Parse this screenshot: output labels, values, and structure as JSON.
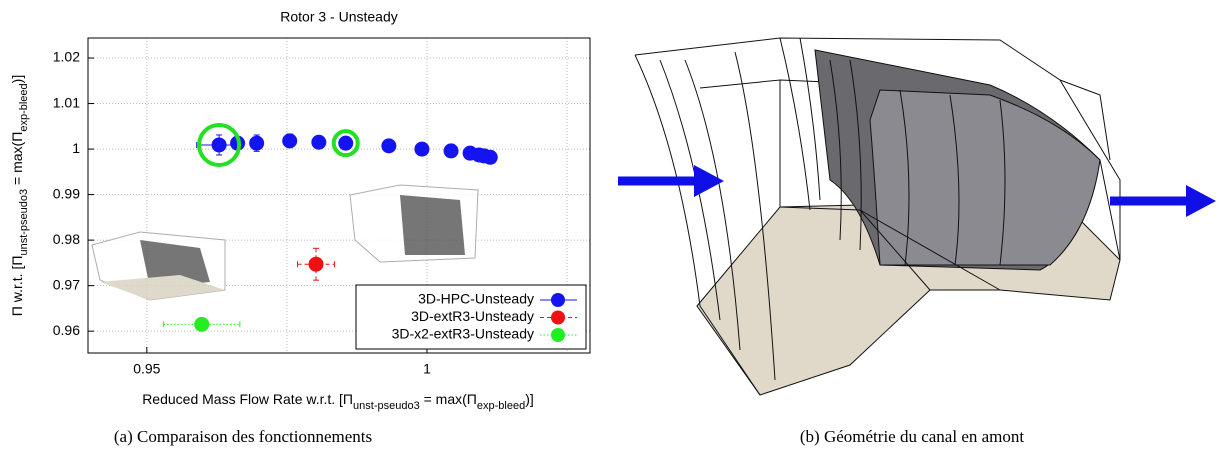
{
  "chart_data": {
    "type": "scatter",
    "title": "Rotor 3 - Unsteady",
    "x_label_parts": [
      "Reduced Mass Flow Rate  w.r.t.  [Π",
      "unst-pseudo3",
      " = max(Π",
      "exp-bleed",
      ")]"
    ],
    "y_label_parts": [
      "Π  w.r.t.  [Π",
      "unst-pseudo3",
      " = max(Π",
      "exp-bleed",
      ")]"
    ],
    "xlim": [
      0.9395,
      1.0291
    ],
    "ylim": [
      0.9552,
      1.0244
    ],
    "xticks": [
      0.95,
      1
    ],
    "xgrid": [
      0.95,
      0.975,
      1,
      1.025
    ],
    "yticks": [
      0.96,
      0.97,
      0.98,
      0.99,
      1,
      1.01,
      1.02
    ],
    "grid": true,
    "legend": "lower right",
    "highlighted_points": [
      0,
      5
    ],
    "highlight_color": "#22e022",
    "series": [
      {
        "name": "3D-HPC-Unsteady",
        "color": "#1414f0",
        "line": "solid",
        "x": [
          0.9629,
          0.9662,
          0.9696,
          0.9755,
          0.9807,
          0.9855,
          0.9932,
          0.9991,
          1.0043,
          1.0077,
          1.0093,
          1.0102,
          1.0113
        ],
        "y": [
          1.0009,
          1.0013,
          1.0013,
          1.0018,
          1.0015,
          1.0013,
          1.0007,
          1.0,
          0.9996,
          0.9991,
          0.9987,
          0.9985,
          0.9982
        ],
        "xerr": [
          0.004,
          0.001,
          0.001,
          0.001,
          0.001,
          0.001,
          null,
          null,
          null,
          null,
          null,
          null,
          null
        ],
        "yerr": [
          0.0022,
          0.0012,
          0.0018,
          0.0015,
          0.0012,
          0.0012,
          null,
          null,
          null,
          null,
          null,
          null,
          null
        ]
      },
      {
        "name": "3D-extR3-Unsteady",
        "color": "#ee1111",
        "line": "dashed",
        "x": [
          0.9802
        ],
        "y": [
          0.9747
        ],
        "xerr": [
          0.0033
        ],
        "yerr": [
          0.0035
        ]
      },
      {
        "name": "3D-x2-extR3-Unsteady",
        "color": "#22ee22",
        "line": "dotted",
        "x": [
          0.9598
        ],
        "y": [
          0.9615
        ],
        "xerr": [
          0.0068
        ],
        "yerr": [
          0.001
        ]
      }
    ]
  },
  "captions": [
    "(a) Comparaison des fonctionnements",
    "(b) Géométrie du canal en amont"
  ]
}
